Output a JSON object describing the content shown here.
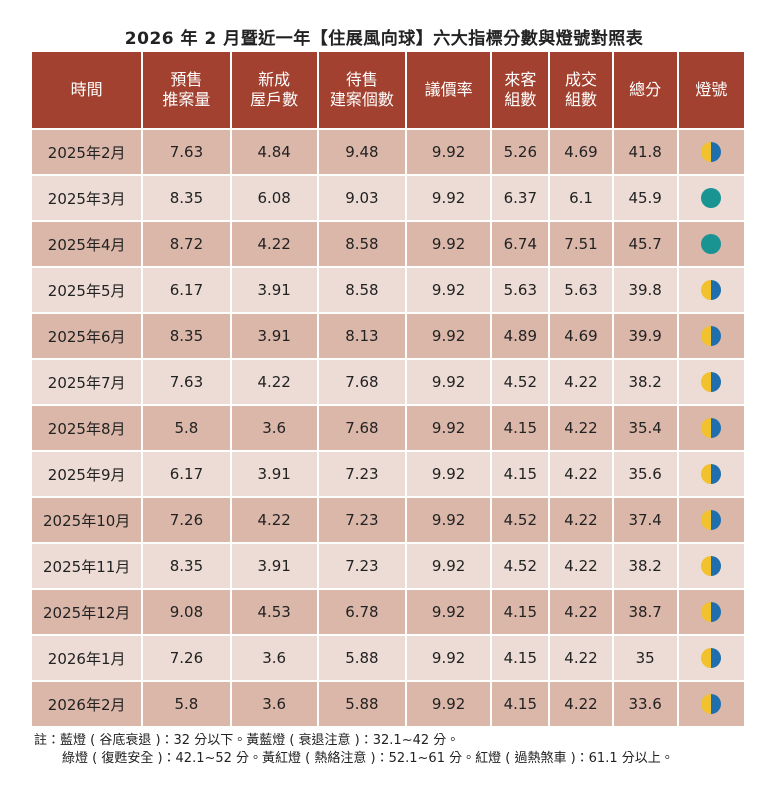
{
  "title": "2026 年 2 月暨近一年【住展風向球】六大指標分數與燈號對照表",
  "table": {
    "headers": [
      [
        "時間"
      ],
      [
        "預售",
        "推案量"
      ],
      [
        "新成",
        "屋戶數"
      ],
      [
        "待售",
        "建案個數"
      ],
      [
        "議價率"
      ],
      [
        "來客",
        "組數"
      ],
      [
        "成交",
        "組數"
      ],
      [
        "總分"
      ],
      [
        "燈號"
      ]
    ],
    "rows": [
      {
        "cells": [
          "2025年2月",
          "7.63",
          "4.84",
          "9.48",
          "9.92",
          "5.26",
          "4.69",
          "41.8"
        ],
        "light": [
          "#f2c12e",
          "#1f6fae"
        ]
      },
      {
        "cells": [
          "2025年3月",
          "8.35",
          "6.08",
          "9.03",
          "9.92",
          "6.37",
          "6.1",
          "45.9"
        ],
        "light": [
          "#1a9393"
        ]
      },
      {
        "cells": [
          "2025年4月",
          "8.72",
          "4.22",
          "8.58",
          "9.92",
          "6.74",
          "7.51",
          "45.7"
        ],
        "light": [
          "#1a9393"
        ]
      },
      {
        "cells": [
          "2025年5月",
          "6.17",
          "3.91",
          "8.58",
          "9.92",
          "5.63",
          "5.63",
          "39.8"
        ],
        "light": [
          "#f2c12e",
          "#1f6fae"
        ]
      },
      {
        "cells": [
          "2025年6月",
          "8.35",
          "3.91",
          "8.13",
          "9.92",
          "4.89",
          "4.69",
          "39.9"
        ],
        "light": [
          "#f2c12e",
          "#1f6fae"
        ]
      },
      {
        "cells": [
          "2025年7月",
          "7.63",
          "4.22",
          "7.68",
          "9.92",
          "4.52",
          "4.22",
          "38.2"
        ],
        "light": [
          "#f2c12e",
          "#1f6fae"
        ]
      },
      {
        "cells": [
          "2025年8月",
          "5.8",
          "3.6",
          "7.68",
          "9.92",
          "4.15",
          "4.22",
          "35.4"
        ],
        "light": [
          "#f2c12e",
          "#1f6fae"
        ]
      },
      {
        "cells": [
          "2025年9月",
          "6.17",
          "3.91",
          "7.23",
          "9.92",
          "4.15",
          "4.22",
          "35.6"
        ],
        "light": [
          "#f2c12e",
          "#1f6fae"
        ]
      },
      {
        "cells": [
          "2025年10月",
          "7.26",
          "4.22",
          "7.23",
          "9.92",
          "4.52",
          "4.22",
          "37.4"
        ],
        "light": [
          "#f2c12e",
          "#1f6fae"
        ]
      },
      {
        "cells": [
          "2025年11月",
          "8.35",
          "3.91",
          "7.23",
          "9.92",
          "4.52",
          "4.22",
          "38.2"
        ],
        "light": [
          "#f2c12e",
          "#1f6fae"
        ]
      },
      {
        "cells": [
          "2025年12月",
          "9.08",
          "4.53",
          "6.78",
          "9.92",
          "4.15",
          "4.22",
          "38.7"
        ],
        "light": [
          "#f2c12e",
          "#1f6fae"
        ]
      },
      {
        "cells": [
          "2026年1月",
          "7.26",
          "3.6",
          "5.88",
          "9.92",
          "4.15",
          "4.22",
          "35"
        ],
        "light": [
          "#f2c12e",
          "#1f6fae"
        ]
      },
      {
        "cells": [
          "2026年2月",
          "5.8",
          "3.6",
          "5.88",
          "9.92",
          "4.15",
          "4.22",
          "33.6"
        ],
        "light": [
          "#f2c12e",
          "#1f6fae"
        ]
      }
    ]
  },
  "notes": [
    "註：藍燈 ( 谷底衰退 )：32 分以下。黃藍燈 ( 衰退注意 )：32.1~42 分。",
    "綠燈 ( 復甦安全 )：42.1~52 分。黃紅燈 ( 熱絡注意 )：52.1~61 分。紅燈 ( 過熱煞車 )：61.1 分以上。"
  ]
}
